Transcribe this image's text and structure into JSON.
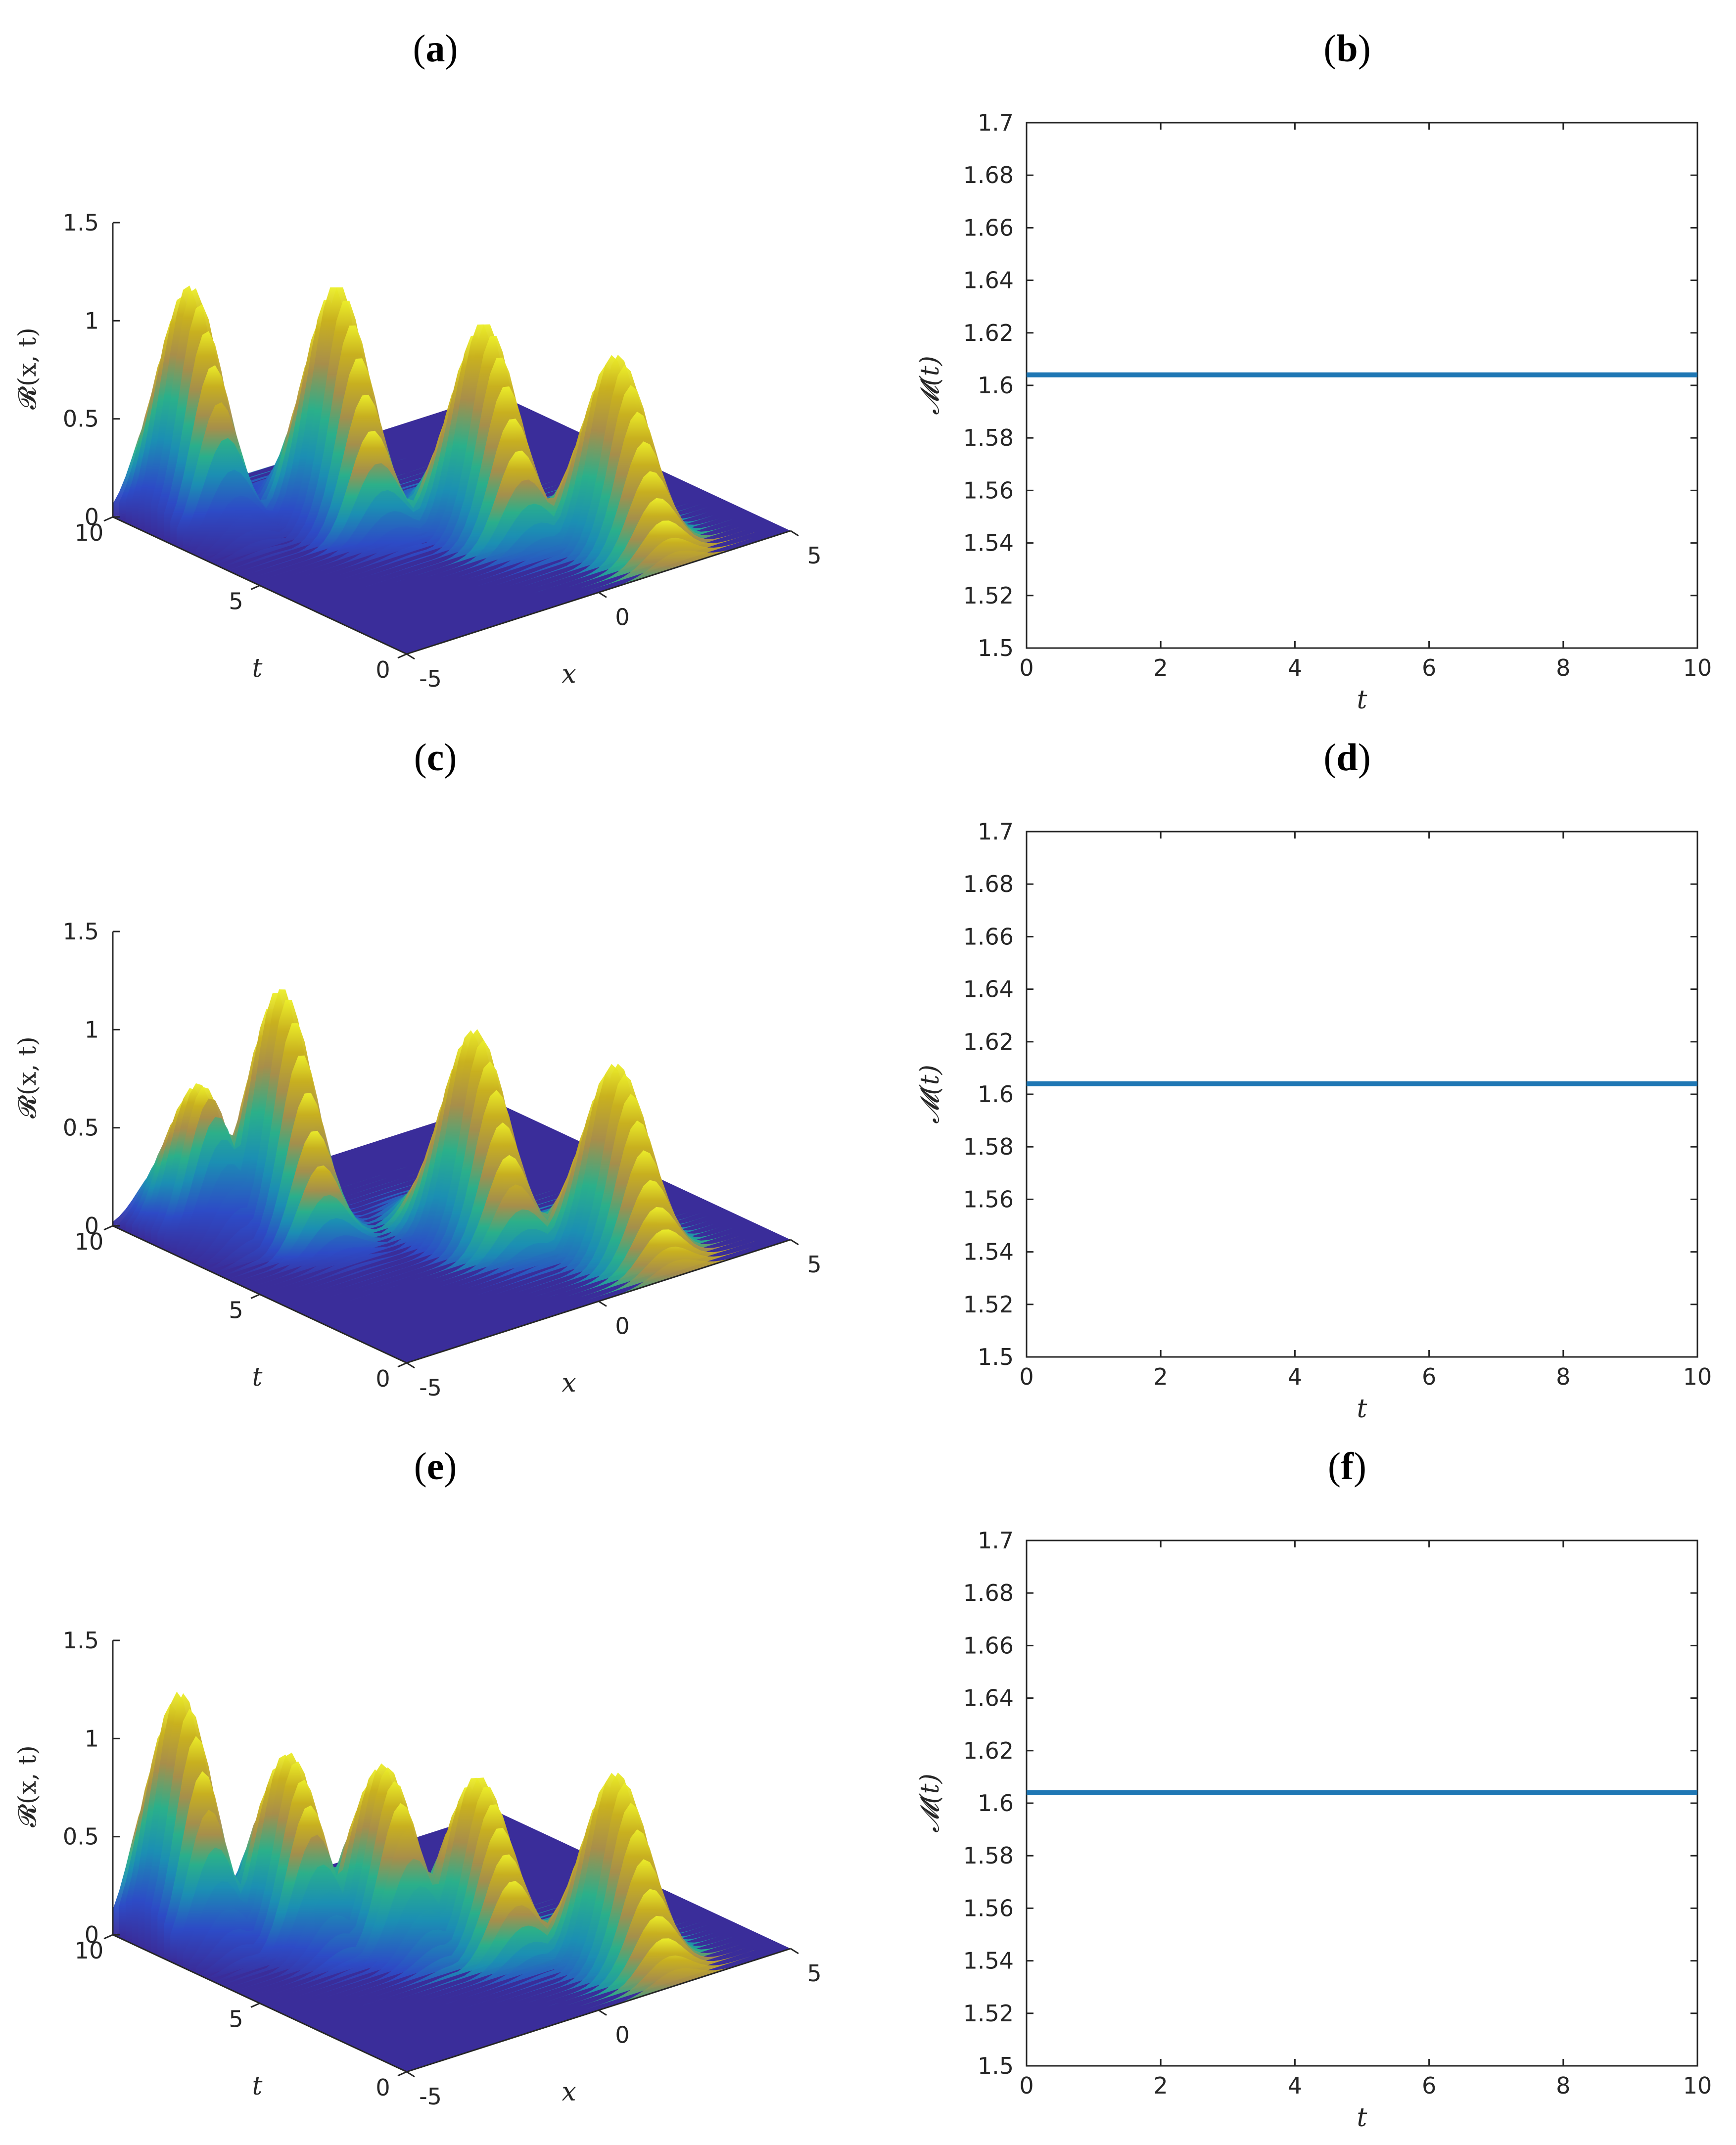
{
  "figure": {
    "panels_3d": [
      {
        "label": "a",
        "zlabel": "𝓡(x, t)",
        "xlabel": "x",
        "tlabel": "t",
        "z_ticks": [
          "0",
          "0.5",
          "1",
          "1.5"
        ],
        "t_ticks": [
          "0",
          "5",
          "10"
        ],
        "x_ticks": [
          "-5",
          "0",
          "5"
        ]
      },
      {
        "label": "c",
        "zlabel": "𝓡(x, t)",
        "xlabel": "x",
        "tlabel": "t",
        "z_ticks": [
          "0",
          "0.5",
          "1",
          "1.5"
        ],
        "t_ticks": [
          "0",
          "5",
          "10"
        ],
        "x_ticks": [
          "-5",
          "0",
          "5"
        ]
      },
      {
        "label": "e",
        "zlabel": "𝓡(x, t)",
        "xlabel": "x",
        "tlabel": "t",
        "z_ticks": [
          "0",
          "0.5",
          "1",
          "1.5"
        ],
        "t_ticks": [
          "0",
          "5",
          "10"
        ],
        "x_ticks": [
          "-5",
          "0",
          "5"
        ]
      }
    ],
    "panels_2d": [
      {
        "label": "b",
        "ylabel": "𝓜(t)",
        "xlabel": "t"
      },
      {
        "label": "d",
        "ylabel": "𝓜(t)",
        "xlabel": "t"
      },
      {
        "label": "f",
        "ylabel": "𝓜(t)",
        "xlabel": "t"
      }
    ]
  },
  "chart_data": [
    {
      "panel": "a",
      "type": "surface",
      "zlabel": "𝓡(x, t)",
      "xlabel": "x",
      "ylabel": "t",
      "xlim": [
        -5,
        5
      ],
      "ylim": [
        0,
        10
      ],
      "zlim": [
        0,
        1.5
      ],
      "colormap": "parula",
      "peaks": [
        {
          "x": -3.9,
          "t": 8.8,
          "height": 1.2
        },
        {
          "x": -1.6,
          "t": 6.8,
          "height": 1.2
        },
        {
          "x": 0.4,
          "t": 4.4,
          "height": 1.05
        },
        {
          "x": 2.0,
          "t": 2.0,
          "height": 0.95
        }
      ]
    },
    {
      "panel": "b",
      "type": "line",
      "xlabel": "t",
      "ylabel": "𝓜(t)",
      "xlim": [
        0,
        10
      ],
      "ylim": [
        1.5,
        1.7
      ],
      "x_ticks": [
        0,
        2,
        4,
        6,
        8,
        10
      ],
      "y_ticks": [
        "1.5",
        "1.52",
        "1.54",
        "1.56",
        "1.58",
        "1.6",
        "1.62",
        "1.64",
        "1.66",
        "1.68",
        "1.7"
      ],
      "series": [
        {
          "x": [
            0,
            10
          ],
          "y": [
            1.604,
            1.604
          ],
          "color": "#1f77b4"
        }
      ]
    },
    {
      "panel": "c",
      "type": "surface",
      "zlabel": "𝓡(x, t)",
      "xlabel": "x",
      "ylabel": "t",
      "xlim": [
        -5,
        5
      ],
      "ylim": [
        0,
        10
      ],
      "zlim": [
        0,
        1.5
      ],
      "colormap": "parula",
      "peaks": [
        {
          "x": -3.8,
          "t": 8.6,
          "height": 0.75
        },
        {
          "x": -2.6,
          "t": 7.4,
          "height": 1.25
        },
        {
          "x": 0.3,
          "t": 4.6,
          "height": 1.05
        },
        {
          "x": 2.0,
          "t": 2.0,
          "height": 0.95
        }
      ]
    },
    {
      "panel": "d",
      "type": "line",
      "xlabel": "t",
      "ylabel": "𝓜(t)",
      "xlim": [
        0,
        10
      ],
      "ylim": [
        1.5,
        1.7
      ],
      "x_ticks": [
        0,
        2,
        4,
        6,
        8,
        10
      ],
      "y_ticks": [
        "1.5",
        "1.52",
        "1.54",
        "1.56",
        "1.58",
        "1.6",
        "1.62",
        "1.64",
        "1.66",
        "1.68",
        "1.7"
      ],
      "series": [
        {
          "x": [
            0,
            10
          ],
          "y": [
            1.604,
            1.604
          ],
          "color": "#1f77b4"
        }
      ]
    },
    {
      "panel": "e",
      "type": "surface",
      "zlabel": "𝓡(x, t)",
      "xlabel": "x",
      "ylabel": "t",
      "xlim": [
        -5,
        5
      ],
      "ylim": [
        0,
        10
      ],
      "zlim": [
        0,
        1.5
      ],
      "colormap": "parula",
      "peaks": [
        {
          "x": -4.0,
          "t": 9.0,
          "height": 1.25
        },
        {
          "x": -2.4,
          "t": 7.4,
          "height": 0.95
        },
        {
          "x": -1.0,
          "t": 6.0,
          "height": 0.9
        },
        {
          "x": 0.4,
          "t": 4.6,
          "height": 0.85
        },
        {
          "x": 2.0,
          "t": 2.0,
          "height": 0.95
        }
      ]
    },
    {
      "panel": "f",
      "type": "line",
      "xlabel": "t",
      "ylabel": "𝓜(t)",
      "xlim": [
        0,
        10
      ],
      "ylim": [
        1.5,
        1.7
      ],
      "x_ticks": [
        0,
        2,
        4,
        6,
        8,
        10
      ],
      "y_ticks": [
        "1.5",
        "1.52",
        "1.54",
        "1.56",
        "1.58",
        "1.6",
        "1.62",
        "1.64",
        "1.66",
        "1.68",
        "1.7"
      ],
      "series": [
        {
          "x": [
            0,
            10
          ],
          "y": [
            1.604,
            1.604
          ],
          "color": "#1f77b4"
        }
      ]
    }
  ]
}
